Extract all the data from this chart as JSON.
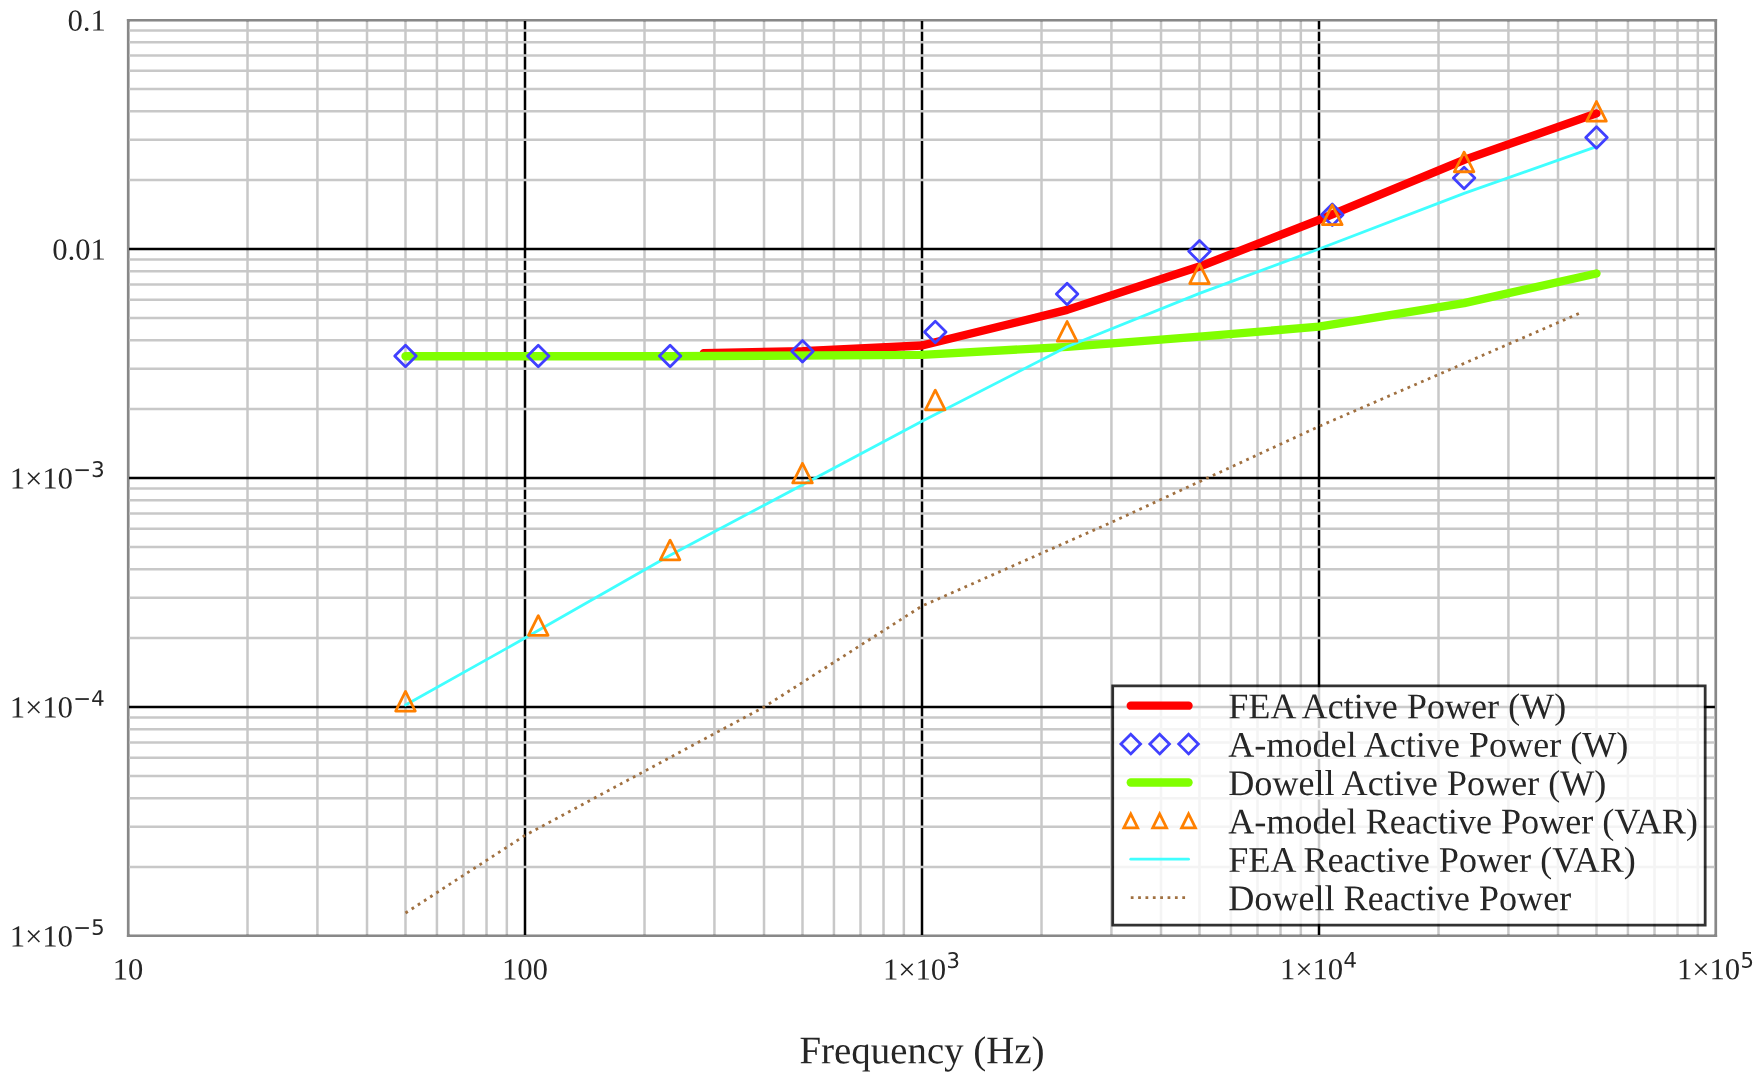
{
  "chart_data": {
    "type": "line",
    "xlabel": "Frequency (Hz)",
    "log": "xy",
    "grid": true,
    "legend": "bottom right",
    "xlim": [
      10,
      100000
    ],
    "ylim": [
      1e-05,
      0.1
    ],
    "xticks": [
      10,
      100,
      {
        "value": 1000,
        "label": "1×10$^{3}$"
      },
      {
        "value": 10000,
        "label": "1×10$^{4}$"
      },
      {
        "value": 100000,
        "label": "1×10$^{5}$"
      }
    ],
    "yticks": [
      {
        "value": 1e-05,
        "label": "1×10$^{−5}$"
      },
      {
        "value": 0.0001,
        "label": "1×10$^{−4}$"
      },
      {
        "value": 0.001,
        "label": "1×10$^{−3}$"
      },
      0.01,
      0.1
    ],
    "series": [
      {
        "name": "FEA Active Power (W)",
        "color": "#ff0000",
        "line_style": "solid",
        "x": [
          282,
          500,
          1000,
          2320,
          5000,
          10000,
          23200,
          50000
        ],
        "values": [
          0.00351,
          0.00358,
          0.00379,
          0.00542,
          0.00838,
          0.0134,
          0.0245,
          0.0391
        ]
      },
      {
        "name": "A-model Active Power (W)",
        "type": "scatter",
        "color": "#4040ff",
        "marker": "diamond",
        "x": [
          50,
          108,
          232,
          500,
          1080,
          2320,
          5000,
          10800,
          23200,
          50000
        ],
        "values": [
          0.00341,
          0.00341,
          0.00341,
          0.00358,
          0.00434,
          0.00636,
          0.00977,
          0.0141,
          0.0204,
          0.0307
        ]
      },
      {
        "name": "Dowell Active Power (W)",
        "color": "#80ff00",
        "line_style": "solid",
        "x": [
          50,
          232,
          1000,
          2320,
          5000,
          10000,
          23200,
          50000
        ],
        "values": [
          0.0034,
          0.0034,
          0.00345,
          0.00374,
          0.00414,
          0.00458,
          0.0058,
          0.00782
        ]
      },
      {
        "name": "A-model Reactive Power (VAR)",
        "type": "scatter",
        "color": "#ff8000",
        "marker": "triangle",
        "x": [
          50,
          108,
          232,
          500,
          1080,
          2320,
          5000,
          10800,
          23200,
          50000
        ],
        "values": [
          0.000106,
          0.000227,
          0.000485,
          0.00105,
          0.00219,
          0.00437,
          0.0078,
          0.0141,
          0.024,
          0.0399
        ]
      },
      {
        "name": "FEA Reactive Power (VAR)",
        "color": "#40ffff",
        "line_style": "solid",
        "x": [
          50,
          100,
          232,
          1000,
          2320,
          5000,
          10000,
          23200,
          50000
        ],
        "values": [
          0.000102,
          0.0002,
          0.00046,
          0.00177,
          0.00374,
          0.0064,
          0.01,
          0.0175,
          0.028
        ]
      },
      {
        "name": "Dowell Reactive Power",
        "color": "#a07040",
        "line_style": "dotted",
        "x": [
          50,
          100,
          400,
          1000,
          3000,
          10000,
          46000
        ],
        "values": [
          1.26e-05,
          2.75e-05,
          0.0001,
          0.000276,
          0.00064,
          0.00168,
          0.0053
        ]
      }
    ]
  }
}
